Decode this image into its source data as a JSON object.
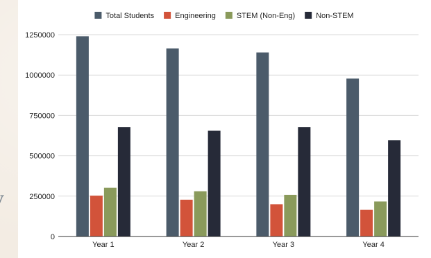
{
  "side_text": "y",
  "chart_data": {
    "type": "bar",
    "title": "",
    "xlabel": "",
    "ylabel": "",
    "categories": [
      "Year 1",
      "Year 2",
      "Year 3",
      "Year 4"
    ],
    "series": [
      {
        "name": "Total Students",
        "color": "#4b5b6a",
        "values": [
          1240000,
          1165000,
          1140000,
          978000
        ]
      },
      {
        "name": "Engineering",
        "color": "#d2533a",
        "values": [
          253000,
          228000,
          200000,
          165000
        ]
      },
      {
        "name": "STEM (Non-Eng)",
        "color": "#8a9a5b",
        "values": [
          302000,
          280000,
          258000,
          217000
        ]
      },
      {
        "name": "Non-STEM",
        "color": "#262a38",
        "values": [
          678000,
          655000,
          678000,
          596000
        ]
      }
    ],
    "ylim": [
      0,
      1250000
    ],
    "yticks": [
      0,
      250000,
      500000,
      750000,
      1000000,
      1250000
    ],
    "ytick_labels": [
      "0",
      "250000",
      "500000",
      "750000",
      "1000000",
      "1250000"
    ],
    "grid": true,
    "legend": "top-center"
  }
}
